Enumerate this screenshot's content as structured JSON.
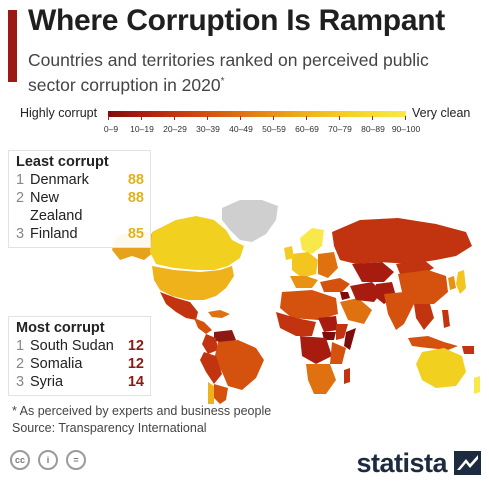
{
  "header": {
    "title": "Where Corruption Is Rampant",
    "subtitle": "Countries and territories ranked on perceived public sector corruption in 2020",
    "subtitle_mark": "*"
  },
  "legend": {
    "low_label": "Highly corrupt",
    "high_label": "Very clean",
    "ranges": [
      "0–9",
      "10–19",
      "20–29",
      "30–39",
      "40–49",
      "50–59",
      "60–69",
      "70–79",
      "80–89",
      "90–100"
    ],
    "colors": [
      "#7f0c0c",
      "#a81c10",
      "#c2340f",
      "#d4510e",
      "#df7111",
      "#e89214",
      "#efb21a",
      "#f4cb22",
      "#f7dc2d",
      "#f9e84a"
    ],
    "no_data_color": "#cfcfcf"
  },
  "least_corrupt": {
    "title": "Least corrupt",
    "items": [
      {
        "rank": "1",
        "country": "Denmark",
        "score": "88"
      },
      {
        "rank": "2",
        "country": "New Zealand",
        "score": "88"
      },
      {
        "rank": "3",
        "country": "Finland",
        "score": "85"
      }
    ]
  },
  "most_corrupt": {
    "title": "Most corrupt",
    "items": [
      {
        "rank": "1",
        "country": "South Sudan",
        "score": "12"
      },
      {
        "rank": "2",
        "country": "Somalia",
        "score": "12"
      },
      {
        "rank": "3",
        "country": "Syria",
        "score": "14"
      }
    ]
  },
  "footer": {
    "footnote": "* As perceived by experts and business people",
    "source": "Source: Transparency International",
    "brand": "statista",
    "license_icons": [
      "cc-icon",
      "by-icon",
      "nd-icon"
    ],
    "license_text": [
      "cc",
      "i",
      "="
    ]
  }
}
